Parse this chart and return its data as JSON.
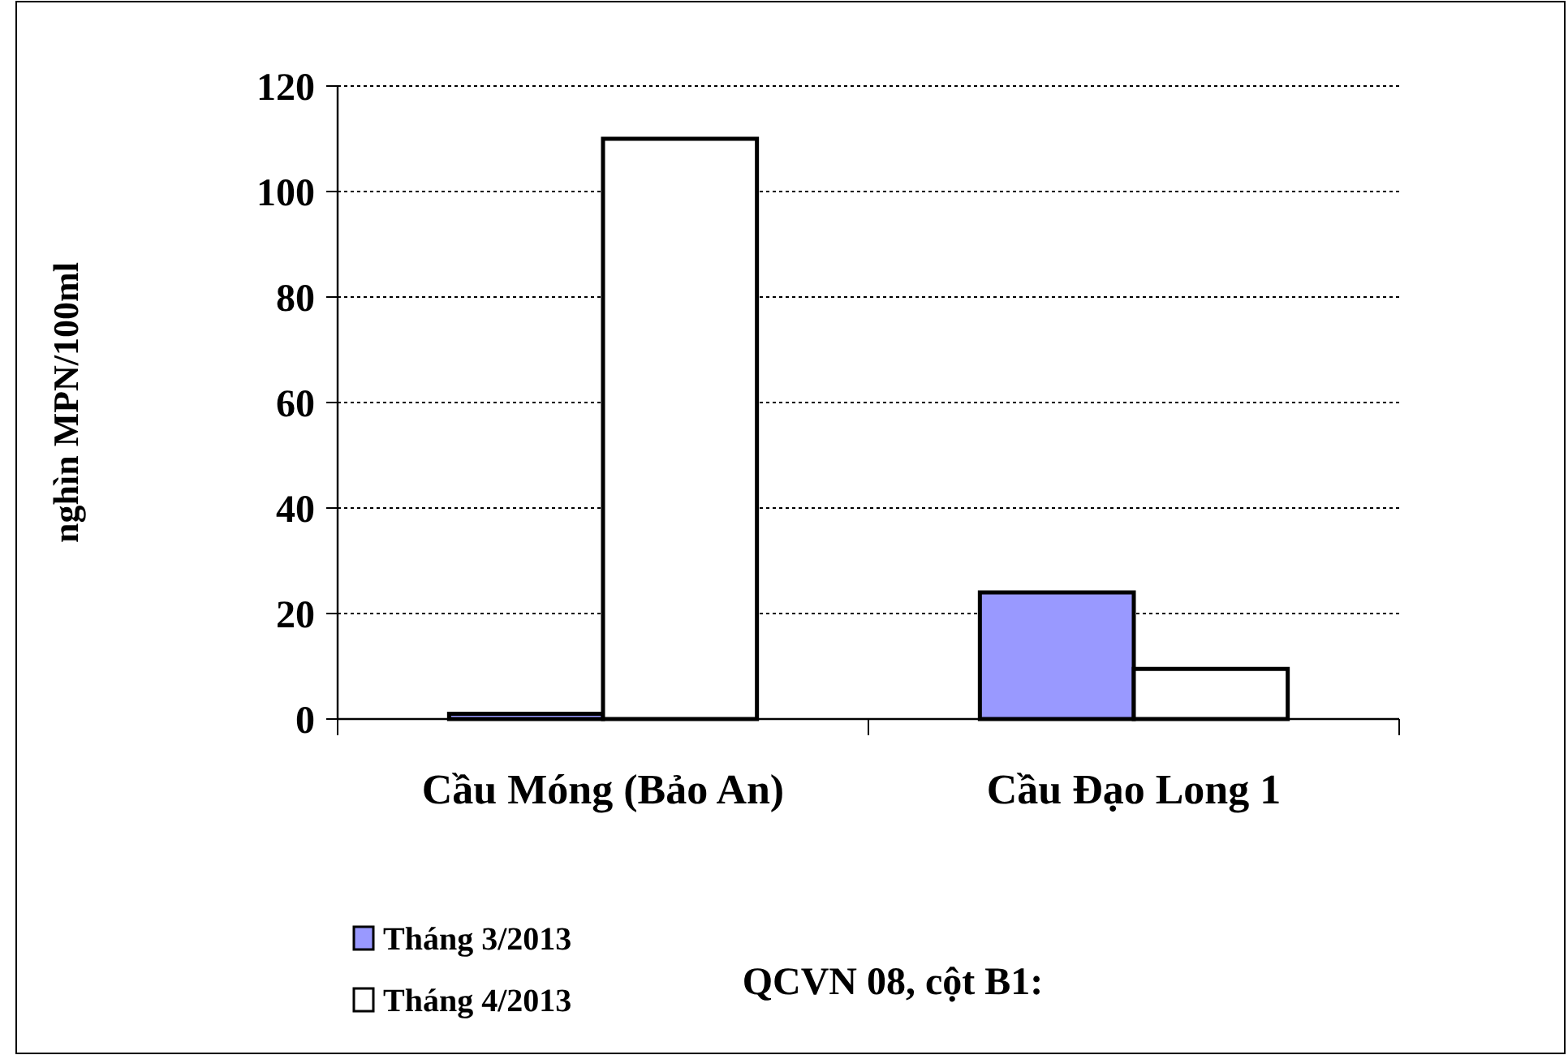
{
  "chart_data": {
    "type": "bar",
    "ylabel": "nghìn MPN/100ml",
    "categories": [
      "Cầu Móng (Bảo An)",
      "Cầu Đạo Long 1"
    ],
    "series": [
      {
        "name": "Tháng 3/2013",
        "color": "#9999ff",
        "values": [
          1,
          24
        ]
      },
      {
        "name": "Tháng 4/2013",
        "color": "#ffffff",
        "values": [
          110,
          9.5
        ]
      }
    ],
    "ylim": [
      0,
      120
    ],
    "yticks": [
      0,
      20,
      40,
      60,
      80,
      100,
      120
    ],
    "grid": "y",
    "legend": "bottom left",
    "annotations": [
      "QCVN 08, cột B1:"
    ]
  }
}
